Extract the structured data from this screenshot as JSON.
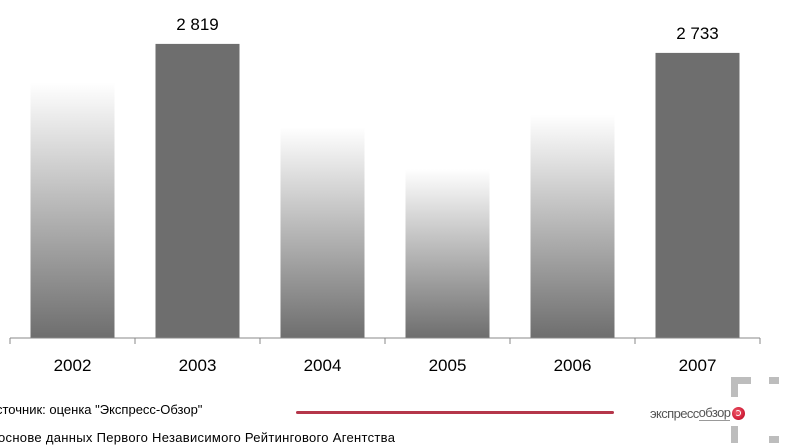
{
  "chart_data": {
    "type": "bar",
    "categories": [
      "2002",
      "2003",
      "2004",
      "2005",
      "2006",
      "2007"
    ],
    "values": [
      2450,
      2819,
      2020,
      1620,
      2140,
      2733
    ],
    "value_labels": [
      "",
      "2 819",
      "",
      "",
      "",
      "2 733"
    ],
    "title": "",
    "xlabel": "",
    "ylabel": "",
    "ylim": [
      0,
      3000
    ],
    "grid": false,
    "legend": "none",
    "colors": {
      "solid_bar": "#6e6e6e",
      "faded_bar_bottom": "#6e6e6e",
      "faded_bar_top": "#ffffff",
      "axis": "#888888"
    }
  },
  "footer": {
    "source": "сточник: оценка \"Экспресс-Обзор\"",
    "note": "основе данных Первого Независимого Рейтингового Агентства",
    "source_rule_color": "#b5364a"
  },
  "logo": {
    "text_left": "экспресс",
    "text_right": "обзор",
    "icon": "red-circle-logo-icon",
    "corner_color": "#bdbdbd"
  }
}
